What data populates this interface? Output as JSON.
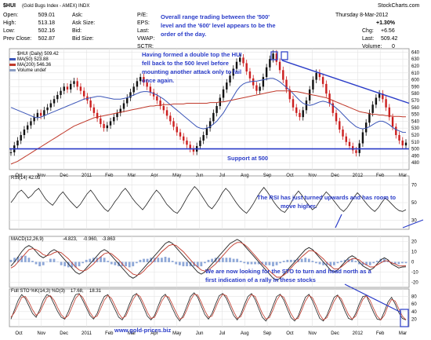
{
  "header": {
    "title": "$HUI",
    "subtitle": "(Gold Bugs Index - AMEX) INDX",
    "brand": "StockCharts.com",
    "date": "Thursday 8-Mar-2012",
    "change_pct": "+1.30%",
    "fields_left": [
      {
        "label": "Open:",
        "value": "509.01"
      },
      {
        "label": "High:",
        "value": "513.18"
      },
      {
        "label": "Low:",
        "value": "502.16"
      },
      {
        "label": "Prev Close:",
        "value": "502.87"
      }
    ],
    "fields_mid": [
      {
        "label": "Ask:",
        "value": ""
      },
      {
        "label": "Ask Size:",
        "value": ""
      },
      {
        "label": "Bid:",
        "value": ""
      },
      {
        "label": "Bid Size:",
        "value": ""
      }
    ],
    "fields_right": [
      {
        "label": "P/E:",
        "value": ""
      },
      {
        "label": "EPS:",
        "value": ""
      },
      {
        "label": "Last:",
        "value": ""
      },
      {
        "label": "VWAP:",
        "value": ""
      },
      {
        "label": "SCTR:",
        "value": ""
      }
    ],
    "chg_label": "Chg:",
    "chg_value": "+6.56",
    "last_label": "Last:",
    "last_value": "509.42",
    "volume_label": "Volume:",
    "volume_value": "0"
  },
  "legend": {
    "line1": "$HUI (Daily) 509.42",
    "line2": "MA(50) 523.88",
    "line3": "MA(200) 546.36",
    "line4": "Volume undef"
  },
  "annotations": {
    "top": [
      "Overall range trading between the '500'",
      "level and the '600' level appears to be the",
      "order of the day."
    ],
    "double_top": [
      "Having formed a double top the HUI",
      "fell back to the 500 level before",
      "mounting another attack only to fail",
      "once again."
    ],
    "support": "Support at 500",
    "rsi": [
      "The RSI has just turned upwards and has room to",
      "move higher."
    ],
    "sto": [
      "We are now looking for the STO to turn and head north as a",
      "first indication of a rally in these stocks"
    ],
    "site": "www.gold-prices.biz"
  },
  "panels": {
    "rsi_label": "RSI(14) 42.05",
    "macd_label": "MACD(12,26,9)",
    "macd_values": [
      "-4.823,",
      "-0.960,",
      "-3.863"
    ],
    "sto_label": "Full STO %K(14,3) %D(3)",
    "sto_values": [
      "17.68,",
      "18.31"
    ]
  },
  "colors": {
    "accent": "#2a3cc8",
    "ma50": "#3b55b8",
    "ma200": "#c0392b",
    "positive": "#2e9a2e",
    "up_candle": "#111111",
    "down_candle": "#cc1f1f"
  },
  "chart_data": [
    {
      "type": "line",
      "title": "$HUI (Daily) 509.42",
      "x_ticks": [
        "Oct",
        "Nov",
        "Dec",
        "2011",
        "Feb",
        "Mar",
        "Apr",
        "May",
        "Jun",
        "Jul",
        "Aug",
        "Sep",
        "Oct",
        "Nov",
        "Dec",
        "2012",
        "Feb",
        "Mar"
      ],
      "y_ticks": [
        480,
        490,
        500,
        510,
        520,
        530,
        540,
        550,
        560,
        570,
        580,
        590,
        600,
        610,
        620,
        630,
        640
      ],
      "ylim": [
        470,
        645
      ],
      "series": [
        {
          "name": "$HUI (Daily) 509.42",
          "values": [
            495,
            505,
            512,
            520,
            528,
            534,
            540,
            546,
            552,
            548,
            556,
            560,
            566,
            572,
            578,
            584,
            590,
            586,
            594,
            598,
            590,
            584,
            576,
            570,
            560,
            552,
            544,
            536,
            530,
            534,
            540,
            546,
            552,
            558,
            566,
            574,
            582,
            590,
            598,
            604,
            596,
            590,
            582,
            576,
            570,
            562,
            556,
            548,
            540,
            532,
            524,
            518,
            512,
            506,
            500,
            496,
            504,
            512,
            520,
            530,
            540,
            552,
            562,
            574,
            586,
            596,
            606,
            616,
            626,
            632,
            624,
            612,
            602,
            592,
            584,
            590,
            604,
            618,
            630,
            638,
            626,
            614,
            600,
            586,
            572,
            560,
            552,
            546,
            556,
            570,
            586,
            600,
            610,
            604,
            594,
            580,
            566,
            552,
            540,
            528,
            518,
            510,
            504,
            498,
            494,
            508,
            524,
            538,
            552,
            564,
            574,
            580,
            572,
            560,
            546,
            532,
            520,
            512,
            505,
            509
          ]
        },
        {
          "name": "MA(50) 523.88",
          "values": [
            560,
            558,
            556,
            554,
            552,
            550,
            548,
            546,
            545,
            546,
            548,
            550,
            552,
            554,
            556,
            558,
            560,
            562,
            564,
            566,
            568,
            570,
            572,
            573,
            574,
            575,
            576,
            576,
            575,
            574,
            573,
            572,
            572,
            572,
            573,
            574,
            576,
            578,
            580,
            582,
            583,
            583,
            582,
            580,
            578,
            575,
            572,
            568,
            564,
            560,
            556,
            552,
            548,
            544,
            540,
            536,
            532,
            530,
            529,
            530,
            532,
            536,
            540,
            546,
            552,
            560,
            568,
            576,
            584,
            590,
            594,
            596,
            597,
            598,
            598,
            599,
            600,
            601,
            602,
            602,
            600,
            597,
            593,
            589,
            585,
            580,
            575,
            570,
            566,
            564,
            563,
            564,
            566,
            568,
            569,
            568,
            566,
            563,
            559,
            555,
            550,
            545,
            540,
            536,
            532,
            530,
            529,
            530,
            532,
            535,
            538,
            540,
            540,
            538,
            535,
            531,
            528,
            526,
            524,
            523.88
          ]
        },
        {
          "name": "MA(200) 546.36",
          "values": [
            478,
            480,
            482,
            485,
            488,
            491,
            494,
            497,
            500,
            503,
            506,
            509,
            512,
            515,
            518,
            521,
            524,
            527,
            530,
            533,
            535,
            537,
            539,
            541,
            543,
            545,
            546,
            547,
            548,
            549,
            550,
            551,
            552,
            553,
            554,
            555,
            556,
            557,
            558,
            559,
            560,
            561,
            562,
            562,
            563,
            563,
            564,
            564,
            564,
            565,
            565,
            565,
            565,
            566,
            566,
            566,
            566,
            566,
            566,
            566,
            567,
            567,
            567,
            568,
            568,
            569,
            570,
            571,
            572,
            573,
            574,
            575,
            576,
            577,
            578,
            579,
            580,
            581,
            582,
            583,
            584,
            584,
            584,
            584,
            584,
            583,
            583,
            582,
            581,
            580,
            579,
            578,
            577,
            576,
            575,
            574,
            572,
            570,
            568,
            566,
            564,
            562,
            560,
            558,
            556,
            554,
            553,
            552,
            551,
            550,
            550,
            549,
            549,
            548,
            548,
            547,
            547,
            547,
            546.5,
            546.36
          ]
        }
      ],
      "hlines": [
        {
          "label": "Support at 500",
          "value": 500
        }
      ]
    },
    {
      "type": "line",
      "title": "RSI(14) 42.05",
      "y_ticks": [
        30,
        50,
        70
      ],
      "ylim": [
        20,
        80
      ],
      "series": [
        {
          "name": "RSI(14) 42.05",
          "values": [
            50,
            55,
            61,
            64,
            60,
            55,
            58,
            63,
            66,
            60,
            54,
            50,
            47,
            52,
            58,
            62,
            57,
            52,
            48,
            44,
            48,
            54,
            60,
            64,
            59,
            53,
            48,
            43,
            40,
            45,
            51,
            56,
            62,
            66,
            61,
            55,
            50,
            46,
            42,
            47,
            53,
            59,
            64,
            60,
            54,
            48,
            44,
            40,
            38,
            43,
            50,
            57,
            63,
            68,
            64,
            58,
            52,
            46,
            43,
            48,
            54,
            61,
            66,
            62,
            56,
            50,
            45,
            41,
            38,
            43,
            49,
            56,
            62,
            67,
            62,
            56,
            50,
            45,
            41,
            39,
            44,
            51,
            58,
            63,
            58,
            52,
            47,
            42,
            45,
            51,
            57,
            62,
            58,
            53,
            48,
            43,
            40,
            44,
            50,
            56,
            61,
            57,
            52,
            47,
            43,
            40,
            44,
            50,
            55,
            52,
            48,
            44,
            41,
            40,
            42.05
          ]
        }
      ]
    },
    {
      "type": "line",
      "title": "MACD(12,26,9)",
      "y_ticks": [
        -20,
        -10,
        0,
        10,
        20
      ],
      "ylim": [
        -25,
        25
      ],
      "series": [
        {
          "name": "MACD",
          "values": [
            -4,
            0,
            5,
            10,
            14,
            16,
            14,
            10,
            6,
            4,
            6,
            10,
            12,
            10,
            6,
            2,
            -2,
            -6,
            -10,
            -12,
            -10,
            -6,
            -2,
            2,
            6,
            10,
            12,
            10,
            6,
            2,
            -2,
            -6,
            -10,
            -14,
            -16,
            -14,
            -10,
            -6,
            -2,
            2,
            6,
            10,
            14,
            18,
            20,
            18,
            14,
            10,
            6,
            2,
            -2,
            -6,
            -10,
            -12,
            -10,
            -6,
            -2,
            2,
            6,
            10,
            14,
            18,
            20,
            22,
            20,
            16,
            12,
            8,
            4,
            0,
            -4,
            -8,
            -12,
            -16,
            -18,
            -16,
            -12,
            -8,
            -4,
            0,
            4,
            8,
            12,
            14,
            12,
            8,
            4,
            0,
            -4,
            -8,
            -10,
            -8,
            -4,
            0,
            4,
            6,
            4,
            0,
            -4,
            -6,
            -8,
            -6,
            -2,
            2,
            4,
            2,
            -2,
            -4,
            -6,
            -5,
            -4.823
          ]
        },
        {
          "name": "Signal",
          "values": [
            -6,
            -4,
            0,
            4,
            8,
            12,
            13,
            12,
            10,
            7,
            6,
            7,
            9,
            10,
            9,
            6,
            3,
            -1,
            -5,
            -8,
            -9,
            -8,
            -5,
            -2,
            2,
            5,
            8,
            9,
            8,
            5,
            2,
            -2,
            -6,
            -9,
            -12,
            -13,
            -12,
            -9,
            -5,
            -2,
            2,
            6,
            10,
            13,
            16,
            17,
            16,
            13,
            10,
            6,
            2,
            -2,
            -5,
            -8,
            -9,
            -8,
            -5,
            -2,
            2,
            6,
            10,
            14,
            17,
            19,
            19,
            17,
            14,
            10,
            6,
            2,
            -2,
            -5,
            -9,
            -12,
            -15,
            -15,
            -13,
            -10,
            -6,
            -2,
            1,
            5,
            8,
            11,
            11,
            9,
            6,
            3,
            -1,
            -4,
            -7,
            -7,
            -5,
            -2,
            1,
            3,
            3,
            2,
            -1,
            -3,
            -5,
            -5,
            -3,
            -1,
            1,
            1,
            -1,
            -2,
            -4,
            -4,
            -3.863
          ]
        }
      ]
    },
    {
      "type": "line",
      "title": "Full STO %K(14,3) %D(3)",
      "y_ticks": [
        20,
        40,
        60,
        80
      ],
      "ylim": [
        0,
        100
      ],
      "series": [
        {
          "name": "%K",
          "values": [
            20,
            45,
            70,
            85,
            75,
            55,
            35,
            25,
            45,
            70,
            85,
            80,
            60,
            40,
            25,
            20,
            40,
            65,
            85,
            88,
            70,
            50,
            30,
            20,
            35,
            60,
            80,
            85,
            65,
            45,
            25,
            18,
            35,
            60,
            82,
            88,
            72,
            50,
            28,
            18,
            30,
            55,
            78,
            86,
            70,
            48,
            28,
            15,
            30,
            55,
            80,
            90,
            78,
            55,
            32,
            20,
            35,
            60,
            82,
            88,
            75,
            52,
            30,
            18,
            32,
            58,
            80,
            88,
            72,
            48,
            25,
            15,
            30,
            56,
            80,
            86,
            70,
            46,
            24,
            15,
            28,
            54,
            78,
            86,
            68,
            44,
            22,
            15,
            30,
            55,
            78,
            84,
            66,
            42,
            22,
            18,
            35,
            60,
            80,
            82,
            60,
            38,
            20,
            18,
            40,
            65,
            78,
            60,
            38,
            22,
            17.68
          ]
        },
        {
          "name": "%D",
          "values": [
            25,
            38,
            58,
            78,
            80,
            65,
            45,
            30,
            38,
            58,
            78,
            82,
            70,
            50,
            32,
            22,
            30,
            52,
            75,
            86,
            78,
            58,
            38,
            24,
            28,
            48,
            70,
            83,
            75,
            55,
            35,
            22,
            28,
            50,
            72,
            86,
            80,
            60,
            38,
            22,
            25,
            45,
            68,
            82,
            78,
            58,
            38,
            20,
            24,
            45,
            70,
            86,
            84,
            65,
            42,
            25,
            28,
            50,
            72,
            86,
            82,
            62,
            40,
            22,
            26,
            48,
            70,
            85,
            80,
            58,
            35,
            20,
            24,
            45,
            70,
            84,
            78,
            56,
            34,
            19,
            22,
            44,
            68,
            83,
            76,
            55,
            32,
            18,
            24,
            45,
            68,
            82,
            74,
            52,
            32,
            20,
            28,
            50,
            72,
            82,
            70,
            48,
            28,
            18,
            30,
            55,
            72,
            68,
            48,
            28,
            18.31
          ]
        }
      ]
    }
  ]
}
